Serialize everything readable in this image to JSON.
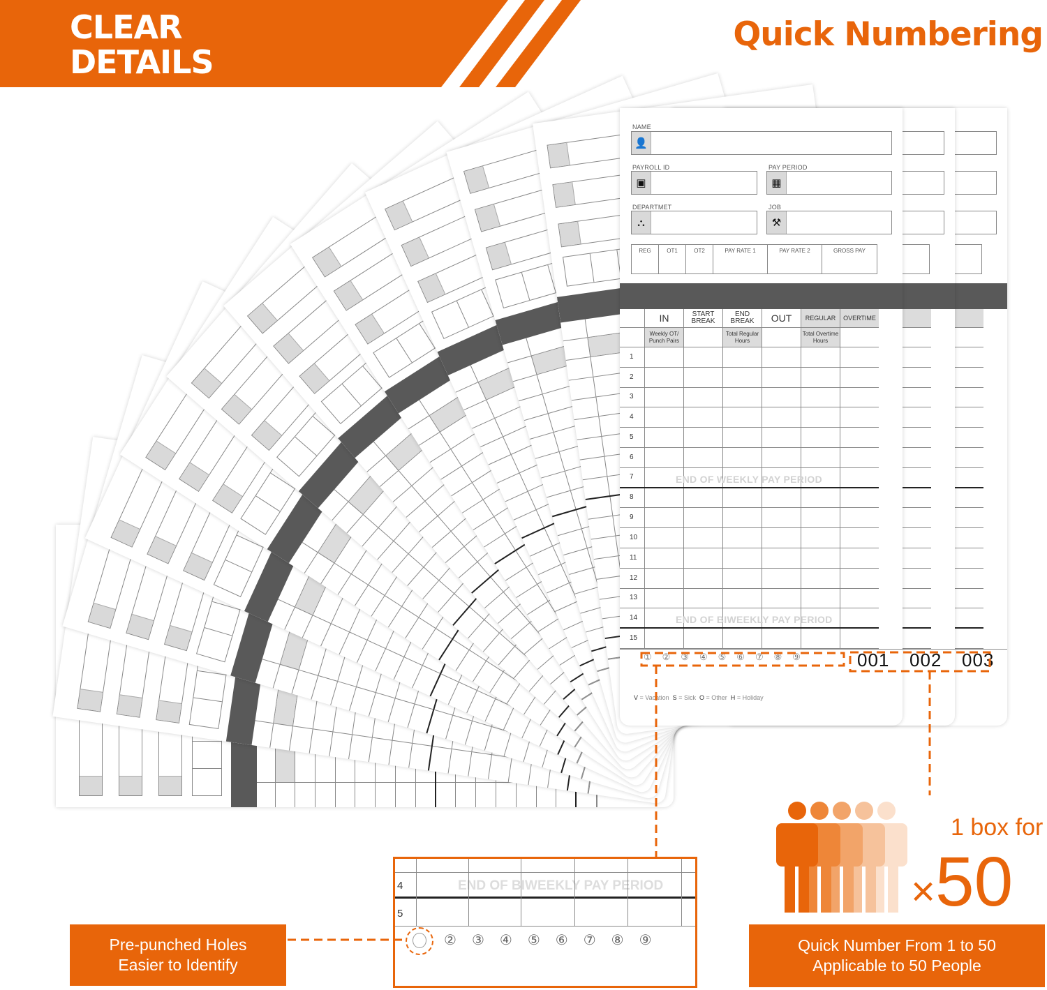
{
  "banner": {
    "title_line1": "CLEAR",
    "title_line2": "DETAILS",
    "headline": "Quick Numbering"
  },
  "colors": {
    "accent": "#e8650a",
    "band": "#595959",
    "header_gray": "#dcdcdc"
  },
  "card": {
    "fields": {
      "name": "NAME",
      "payroll_id": "PAYROLL ID",
      "pay_period": "PAY PERIOD",
      "department": "DEPARTMET",
      "job": "JOB"
    },
    "icons": {
      "name": "person-icon",
      "payroll_id": "id-badge-icon",
      "pay_period": "calendar-icon",
      "department": "org-chart-icon",
      "job": "tools-icon"
    },
    "summary": [
      "REG",
      "OT1",
      "OT2",
      "PAY RATE 1",
      "PAY RATE 2",
      "GROSS PAY"
    ],
    "headers": [
      "IN",
      "START BREAK",
      "END BREAK",
      "OUT",
      "REGULAR",
      "OVERTIME"
    ],
    "subheaders": [
      "Weekly OT/ Punch Pairs",
      "",
      "Total Regular Hours",
      "",
      "Total Overtime Hours",
      ""
    ],
    "rows": [
      "1",
      "2",
      "3",
      "4",
      "5",
      "6",
      "7",
      "8",
      "9",
      "10",
      "11",
      "12",
      "13",
      "14",
      "15"
    ],
    "watermark_weekly": "END OF WEEKLY PAY PERIOD",
    "watermark_biweekly": "END OF BIWEEKLY PAY PERIOD",
    "holes": [
      "①",
      "②",
      "③",
      "④",
      "⑤",
      "⑥",
      "⑦",
      "⑧",
      "⑨"
    ],
    "legend": [
      {
        "key": "V",
        "label": "= Vacation"
      },
      {
        "key": "S",
        "label": "= Sick"
      },
      {
        "key": "O",
        "label": "= Other"
      },
      {
        "key": "H",
        "label": "= Holiday"
      }
    ]
  },
  "serials": [
    "001",
    "002",
    "003"
  ],
  "inset": {
    "rows": [
      "4",
      "5"
    ],
    "watermark": "END OF BIWEEKLY PAY PERIOD",
    "holes": [
      "②",
      "③",
      "④",
      "⑤",
      "⑥",
      "⑦",
      "⑧",
      "⑨"
    ]
  },
  "callouts": {
    "holes_line1": "Pre-punched Holes",
    "holes_line2": "Easier to Identify",
    "box_for": "1 box for",
    "multiplier": "×",
    "count": "50",
    "number_line1": "Quick Number From 1 to 50",
    "number_line2": "Applicable to 50 People"
  }
}
